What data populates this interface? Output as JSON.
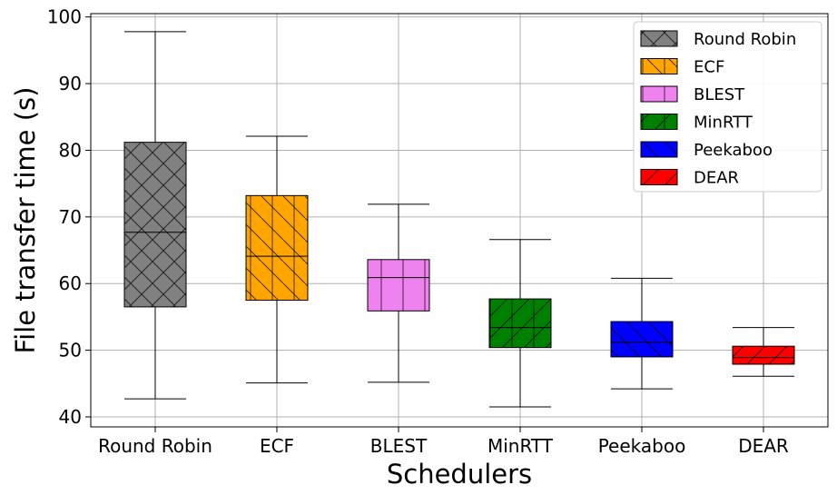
{
  "chart_data": {
    "type": "boxplot",
    "xlabel": "Schedulers",
    "ylabel": "File transfer time (s)",
    "ylim": [
      38.5,
      100.5
    ],
    "yticks": [
      40,
      50,
      60,
      70,
      80,
      90,
      100
    ],
    "grid": true,
    "legend_position": "top-right",
    "categories": [
      "Round Robin",
      "ECF",
      "BLEST",
      "MinRTT",
      "Peekaboo",
      "DEAR"
    ],
    "series": [
      {
        "name": "Round Robin",
        "color": "#808080",
        "hatch": "cross",
        "whisker_low": 42.7,
        "q1": 56.5,
        "median": 67.7,
        "q3": 81.2,
        "whisker_high": 97.8
      },
      {
        "name": "ECF",
        "color": "#FFA500",
        "hatch": "backslash-vertical",
        "whisker_low": 45.1,
        "q1": 57.5,
        "median": 64.1,
        "q3": 73.2,
        "whisker_high": 82.1
      },
      {
        "name": "BLEST",
        "color": "#EE82EE",
        "hatch": "vertical",
        "whisker_low": 45.2,
        "q1": 55.9,
        "median": 60.9,
        "q3": 63.6,
        "whisker_high": 71.9
      },
      {
        "name": "MinRTT",
        "color": "#008000",
        "hatch": "slash-vertical",
        "whisker_low": 41.5,
        "q1": 50.4,
        "median": 53.4,
        "q3": 57.7,
        "whisker_high": 66.6
      },
      {
        "name": "Peekaboo",
        "color": "#0000FF",
        "hatch": "backslash",
        "whisker_low": 44.2,
        "q1": 49.0,
        "median": 51.2,
        "q3": 54.3,
        "whisker_high": 60.8
      },
      {
        "name": "DEAR",
        "color": "#FF0000",
        "hatch": "slash",
        "whisker_low": 46.1,
        "q1": 47.9,
        "median": 48.9,
        "q3": 50.6,
        "whisker_high": 53.4
      }
    ]
  }
}
